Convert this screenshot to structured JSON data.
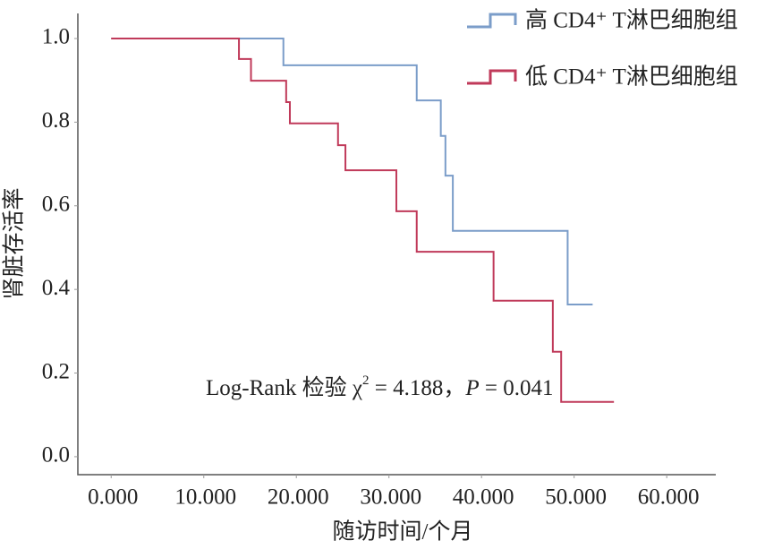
{
  "chart_data": {
    "type": "line",
    "step": true,
    "x_label": "随访时间/个月",
    "y_label": "肾脏存活率",
    "annotation": [
      "Log-Rank 检验 χ",
      "2",
      " = 4.188，",
      "P",
      " = 0.041"
    ],
    "xlim": [
      -3.6,
      65.3
    ],
    "ylim": [
      -0.043,
      1.06
    ],
    "xticks": [
      {
        "value": 0,
        "label": "0.000"
      },
      {
        "value": 10,
        "label": "10.000"
      },
      {
        "value": 20,
        "label": "20.000"
      },
      {
        "value": 30,
        "label": "30.000"
      },
      {
        "value": 40,
        "label": "40.000"
      },
      {
        "value": 50,
        "label": "50.000"
      },
      {
        "value": 60,
        "label": "60.000"
      }
    ],
    "yticks": [
      {
        "value": 0,
        "label": "0.0"
      },
      0.2,
      0.4,
      0.6,
      0.8,
      {
        "value": 1,
        "label": "1.0"
      }
    ],
    "legend": "top-right",
    "series": [
      {
        "name": "高 CD4⁺ T淋巴细胞组",
        "color": "#7b9dc9",
        "x": [
          0,
          18.6,
          33.0,
          35.6,
          36.1,
          36.9,
          49.3,
          52.0
        ],
        "values": [
          1.0,
          0.936,
          0.852,
          0.767,
          0.672,
          0.54,
          0.364,
          0.364
        ]
      },
      {
        "name": "低 CD4⁺ T淋巴细胞组",
        "color": "#c03a5a",
        "x": [
          0,
          13.8,
          15.1,
          18.9,
          19.3,
          24.5,
          25.3,
          30.8,
          33.0,
          41.3,
          47.7,
          48.6,
          54.3
        ],
        "values": [
          1.0,
          0.951,
          0.899,
          0.848,
          0.797,
          0.745,
          0.685,
          0.587,
          0.49,
          0.373,
          0.251,
          0.131,
          0.131
        ]
      }
    ]
  }
}
